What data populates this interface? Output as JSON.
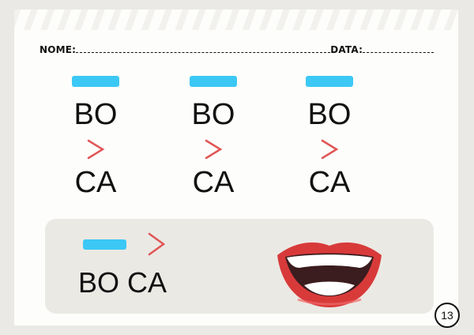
{
  "header": {
    "name_label": "NOME:",
    "date_label": "DATA:"
  },
  "columns": [
    {
      "top": "BO",
      "bottom": "CA"
    },
    {
      "top": "BO",
      "bottom": "CA"
    },
    {
      "top": "BO",
      "bottom": "CA"
    }
  ],
  "panel": {
    "word": "BO CA",
    "image": "smiling-lips"
  },
  "page_number": "13",
  "colors": {
    "bar": "#3cc8f5",
    "arrow": "#e05555",
    "panel": "#ebe9e4"
  },
  "icons": {
    "arrow": "chevron-right-icon"
  }
}
